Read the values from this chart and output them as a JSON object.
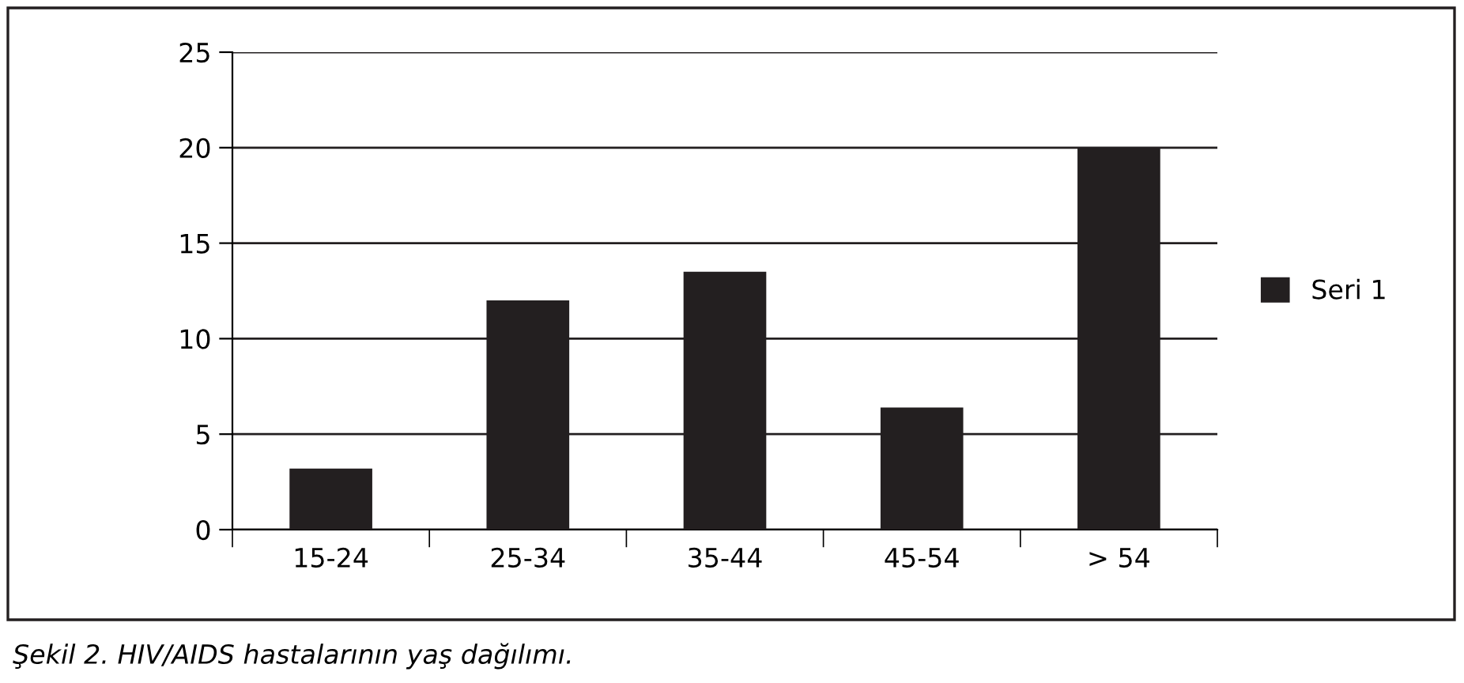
{
  "chart_data": {
    "type": "bar",
    "categories": [
      "15-24",
      "25-34",
      "35-44",
      "45-54",
      "> 54"
    ],
    "series": [
      {
        "name": "Seri 1",
        "color": "#231f20",
        "values": [
          3.2,
          12.0,
          13.5,
          6.4,
          20.0
        ]
      }
    ],
    "ylim": [
      0,
      25
    ],
    "yticks": [
      0,
      5,
      10,
      15,
      20,
      25
    ],
    "grid": "y",
    "legend": "right",
    "annotations": [
      "Şekil 2. HIV/AIDS hastalarının yaş dağılımı."
    ]
  }
}
